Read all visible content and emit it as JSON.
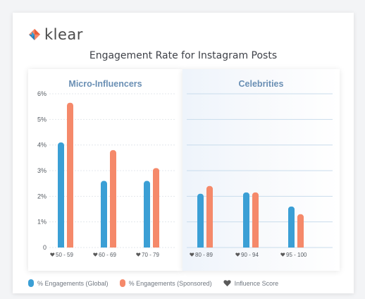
{
  "brand": {
    "name": "klear"
  },
  "colors": {
    "global": "#3b9fd5",
    "sponsored": "#f5896a",
    "heart": "#5a5a5a",
    "panel_label": "#6a8fb4"
  },
  "chart_data": {
    "type": "bar",
    "title": "Engagement Rate for Instagram Posts",
    "groups": [
      "Micro-Influencers",
      "Celebrities"
    ],
    "categories": [
      "50 - 59",
      "60 - 69",
      "70 - 79",
      "80 - 89",
      "90 - 94",
      "95 - 100"
    ],
    "category_group": [
      0,
      0,
      0,
      1,
      1,
      1
    ],
    "series": [
      {
        "name": "% Engagements (Global)",
        "values": [
          4.1,
          2.6,
          2.6,
          2.1,
          2.15,
          1.6
        ]
      },
      {
        "name": "% Engagements (Sponsored)",
        "values": [
          5.65,
          3.8,
          3.1,
          2.4,
          2.15,
          1.3
        ]
      }
    ],
    "category_marker": "Influence Score",
    "ylim": [
      0,
      6
    ],
    "yticks": [
      "0",
      "1%",
      "2%",
      "3%",
      "4%",
      "5%",
      "6%"
    ],
    "ytick_values": [
      0,
      1,
      2,
      3,
      4,
      5,
      6
    ],
    "grid": true,
    "legend_position": "bottom-left"
  }
}
